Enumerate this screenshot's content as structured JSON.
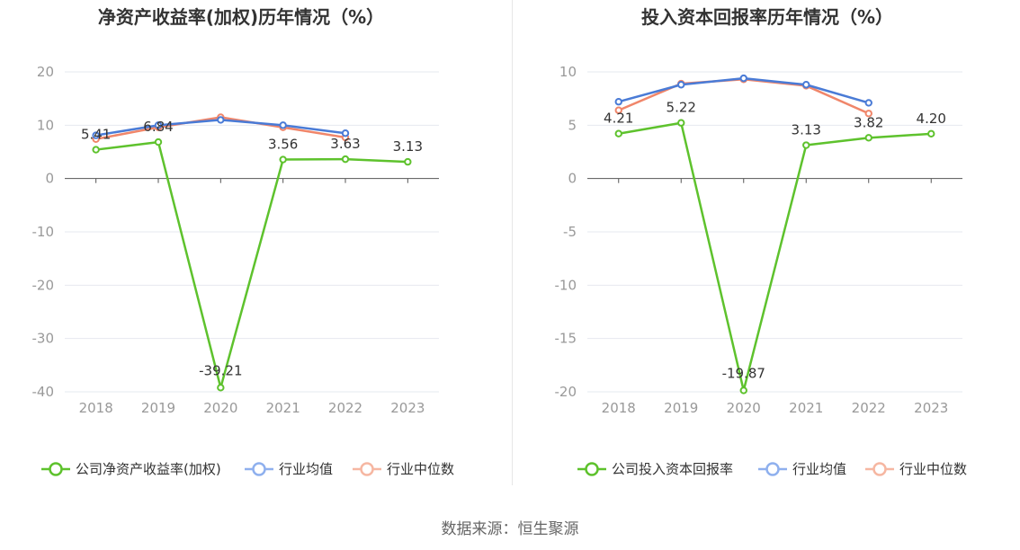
{
  "source_text": "数据来源：恒生聚源",
  "colors": {
    "company": "#5ec22d",
    "avg": "#4a7bd6",
    "median": "#f0866a",
    "legend_avg": "#8fb0ee",
    "legend_median": "#f6b7a2",
    "grid": "#e6e8ef",
    "axis": "#555555"
  },
  "chart_data": [
    {
      "type": "line",
      "title": "净资产收益率(加权)历年情况（%）",
      "categories": [
        "2018",
        "2019",
        "2020",
        "2021",
        "2022",
        "2023"
      ],
      "ylim": [
        -40,
        20
      ],
      "yticks": [
        20,
        10,
        0,
        -10,
        -20,
        -30,
        -40
      ],
      "grid": true,
      "legend_position": "bottom",
      "series": [
        {
          "name": "公司净资产收益率(加权)",
          "key": "company",
          "values": [
            5.41,
            6.84,
            -39.21,
            3.56,
            3.63,
            3.13
          ],
          "labels": [
            "5.41",
            "6.84",
            "-39.21",
            "3.56",
            "3.63",
            "3.13"
          ]
        },
        {
          "name": "行业均值",
          "key": "avg",
          "values": [
            8.1,
            10.0,
            11.0,
            10.0,
            8.5,
            null
          ]
        },
        {
          "name": "行业中位数",
          "key": "median",
          "values": [
            7.4,
            9.6,
            11.5,
            9.6,
            7.7,
            null
          ]
        }
      ]
    },
    {
      "type": "line",
      "title": "投入资本回报率历年情况（%）",
      "categories": [
        "2018",
        "2019",
        "2020",
        "2021",
        "2022",
        "2023"
      ],
      "ylim": [
        -20,
        10
      ],
      "yticks": [
        10,
        5,
        0,
        -5,
        -10,
        -15,
        -20
      ],
      "grid": true,
      "legend_position": "bottom",
      "series": [
        {
          "name": "公司投入资本回报率",
          "key": "company",
          "values": [
            4.21,
            5.22,
            -19.87,
            3.13,
            3.82,
            4.2
          ],
          "labels": [
            "4.21",
            "5.22",
            "-19.87",
            "3.13",
            "3.82",
            "4.20"
          ]
        },
        {
          "name": "行业均值",
          "key": "avg",
          "values": [
            7.2,
            8.8,
            9.4,
            8.8,
            7.1,
            null
          ]
        },
        {
          "name": "行业中位数",
          "key": "median",
          "values": [
            6.4,
            8.9,
            9.3,
            8.7,
            6.1,
            null
          ]
        }
      ]
    }
  ]
}
